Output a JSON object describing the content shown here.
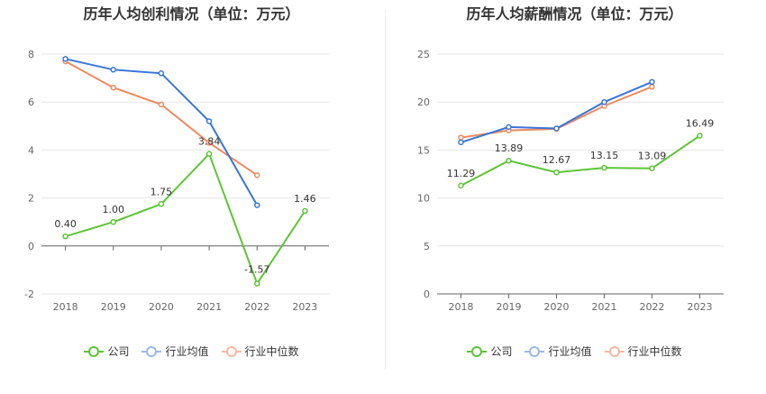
{
  "colors": {
    "company": "#5cc534",
    "industry_avg": "#3a75d9",
    "industry_median": "#ef8a5e"
  },
  "chart_data": [
    {
      "type": "line",
      "title": "历年人均创利情况（单位：万元）",
      "categories": [
        "2018",
        "2019",
        "2020",
        "2021",
        "2022",
        "2023"
      ],
      "ylim": [
        -2,
        8
      ],
      "yticks": [
        "-2",
        "0",
        "2",
        "4",
        "6",
        "8"
      ],
      "grid": true,
      "legend_position": "bottom",
      "series": [
        {
          "name": "公司",
          "key": "company",
          "values": [
            0.4,
            1.0,
            1.75,
            3.84,
            -1.57,
            1.46
          ],
          "labels": [
            "0.40",
            "1.00",
            "1.75",
            "3.84",
            "-1.57",
            "1.46"
          ]
        },
        {
          "name": "行业均值",
          "key": "industry_avg",
          "values": [
            7.8,
            7.35,
            7.2,
            5.2,
            1.7,
            null
          ]
        },
        {
          "name": "行业中位数",
          "key": "industry_median",
          "values": [
            7.7,
            6.6,
            5.9,
            4.3,
            2.95,
            null
          ]
        }
      ]
    },
    {
      "type": "line",
      "title": "历年人均薪酬情况（单位：万元）",
      "categories": [
        "2018",
        "2019",
        "2020",
        "2021",
        "2022",
        "2023"
      ],
      "ylim": [
        0,
        25
      ],
      "yticks": [
        "0",
        "5",
        "10",
        "15",
        "20",
        "25"
      ],
      "grid": true,
      "legend_position": "bottom",
      "series": [
        {
          "name": "公司",
          "key": "company",
          "values": [
            11.29,
            13.89,
            12.67,
            13.15,
            13.09,
            16.49
          ],
          "labels": [
            "11.29",
            "13.89",
            "12.67",
            "13.15",
            "13.09",
            "16.49"
          ]
        },
        {
          "name": "行业均值",
          "key": "industry_avg",
          "values": [
            15.8,
            17.4,
            17.25,
            20.0,
            22.1,
            null
          ]
        },
        {
          "name": "行业中位数",
          "key": "industry_median",
          "values": [
            16.3,
            17.05,
            17.2,
            19.6,
            21.6,
            null
          ]
        }
      ]
    }
  ]
}
